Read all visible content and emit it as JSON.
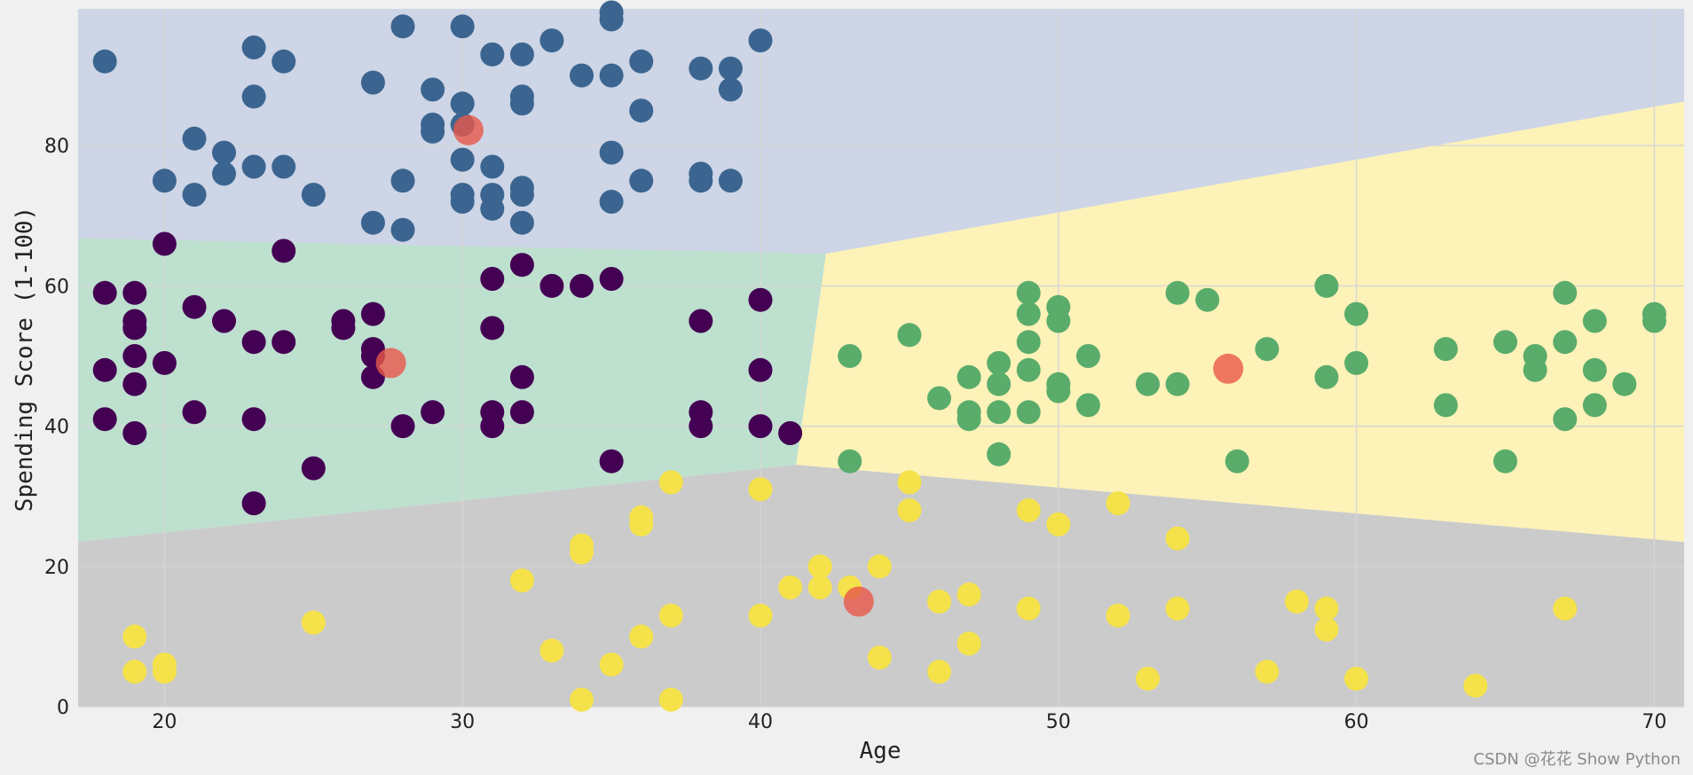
{
  "chart_data": {
    "type": "scatter",
    "title": "",
    "xlabel": "Age",
    "ylabel": "Spending Score (1-100)",
    "xlim": [
      17.1,
      71
    ],
    "ylim": [
      0,
      99.5
    ],
    "xticks": [
      20,
      30,
      40,
      50,
      60,
      70
    ],
    "yticks": [
      0,
      20,
      40,
      60,
      80
    ],
    "grid": true,
    "regions": [
      {
        "cluster": "gray",
        "color": "#cbcbcb",
        "polygon": [
          [
            17.1,
            0
          ],
          [
            71,
            0
          ],
          [
            71,
            23.5
          ],
          [
            41.2,
            34.5
          ],
          [
            17.1,
            23.5
          ]
        ]
      },
      {
        "cluster": "green",
        "color": "#bee0cf",
        "polygon": [
          [
            17.1,
            23.5
          ],
          [
            41.2,
            34.5
          ],
          [
            42.2,
            64.6
          ],
          [
            17.1,
            66.8
          ]
        ]
      },
      {
        "cluster": "yellow",
        "color": "#fdf2b8",
        "polygon": [
          [
            41.2,
            34.5
          ],
          [
            71,
            23.5
          ],
          [
            71,
            86.3
          ],
          [
            42.2,
            64.6
          ]
        ]
      },
      {
        "cluster": "blue",
        "color": "#cdd5e6",
        "polygon": [
          [
            17.1,
            66.8
          ],
          [
            42.2,
            64.6
          ],
          [
            71,
            86.3
          ],
          [
            71,
            99.5
          ],
          [
            17.1,
            99.5
          ]
        ]
      }
    ],
    "series": [
      {
        "cluster": "dark-purple",
        "color": "#440154",
        "points": [
          [
            18,
            59
          ],
          [
            18,
            48
          ],
          [
            18,
            41
          ],
          [
            19,
            59
          ],
          [
            19,
            55
          ],
          [
            19,
            54
          ],
          [
            19,
            50
          ],
          [
            19,
            46
          ],
          [
            19,
            39
          ],
          [
            20,
            66
          ],
          [
            20,
            49
          ],
          [
            21,
            57
          ],
          [
            21,
            42
          ],
          [
            22,
            55
          ],
          [
            23,
            52
          ],
          [
            23,
            41
          ],
          [
            23,
            29
          ],
          [
            24,
            65
          ],
          [
            24,
            52
          ],
          [
            25,
            34
          ],
          [
            26,
            55
          ],
          [
            26,
            54
          ],
          [
            27,
            56
          ],
          [
            27,
            51
          ],
          [
            27,
            50
          ],
          [
            27,
            47
          ],
          [
            28,
            40
          ],
          [
            29,
            42
          ],
          [
            31,
            61
          ],
          [
            31,
            54
          ],
          [
            31,
            42
          ],
          [
            31,
            40
          ],
          [
            32,
            63
          ],
          [
            32,
            47
          ],
          [
            32,
            42
          ],
          [
            33,
            60
          ],
          [
            34,
            60
          ],
          [
            35,
            61
          ],
          [
            35,
            35
          ],
          [
            38,
            55
          ],
          [
            38,
            42
          ],
          [
            38,
            40
          ],
          [
            40,
            58
          ],
          [
            40,
            48
          ],
          [
            40,
            40
          ],
          [
            41,
            39
          ]
        ]
      },
      {
        "cluster": "blue",
        "color": "#3b6590",
        "points": [
          [
            18,
            92
          ],
          [
            21,
            81
          ],
          [
            21,
            73
          ],
          [
            20,
            75
          ],
          [
            22,
            79
          ],
          [
            22,
            76
          ],
          [
            23,
            94
          ],
          [
            23,
            87
          ],
          [
            23,
            77
          ],
          [
            24,
            92
          ],
          [
            24,
            77
          ],
          [
            25,
            73
          ],
          [
            27,
            89
          ],
          [
            27,
            69
          ],
          [
            28,
            97
          ],
          [
            28,
            75
          ],
          [
            28,
            68
          ],
          [
            29,
            88
          ],
          [
            29,
            83
          ],
          [
            29,
            82
          ],
          [
            30,
            97
          ],
          [
            30,
            86
          ],
          [
            30,
            83
          ],
          [
            30,
            78
          ],
          [
            30,
            73
          ],
          [
            30,
            72
          ],
          [
            31,
            93
          ],
          [
            31,
            77
          ],
          [
            31,
            73
          ],
          [
            31,
            71
          ],
          [
            32,
            93
          ],
          [
            32,
            87
          ],
          [
            32,
            86
          ],
          [
            32,
            74
          ],
          [
            32,
            73
          ],
          [
            32,
            69
          ],
          [
            33,
            95
          ],
          [
            34,
            90
          ],
          [
            35,
            99
          ],
          [
            35,
            98
          ],
          [
            35,
            90
          ],
          [
            35,
            79
          ],
          [
            35,
            72
          ],
          [
            36,
            92
          ],
          [
            36,
            85
          ],
          [
            36,
            75
          ],
          [
            38,
            91
          ],
          [
            38,
            76
          ],
          [
            38,
            75
          ],
          [
            39,
            91
          ],
          [
            39,
            88
          ],
          [
            39,
            75
          ],
          [
            40,
            95
          ]
        ]
      },
      {
        "cluster": "green",
        "color": "#5aac6b",
        "points": [
          [
            43,
            50
          ],
          [
            43,
            35
          ],
          [
            45,
            53
          ],
          [
            46,
            44
          ],
          [
            47,
            47
          ],
          [
            47,
            42
          ],
          [
            47,
            41
          ],
          [
            48,
            49
          ],
          [
            48,
            46
          ],
          [
            48,
            42
          ],
          [
            48,
            36
          ],
          [
            49,
            59
          ],
          [
            49,
            56
          ],
          [
            49,
            52
          ],
          [
            49,
            48
          ],
          [
            49,
            42
          ],
          [
            50,
            57
          ],
          [
            50,
            55
          ],
          [
            50,
            46
          ],
          [
            50,
            45
          ],
          [
            51,
            50
          ],
          [
            51,
            43
          ],
          [
            53,
            46
          ],
          [
            54,
            59
          ],
          [
            54,
            46
          ],
          [
            55,
            58
          ],
          [
            56,
            35
          ],
          [
            57,
            51
          ],
          [
            59,
            60
          ],
          [
            59,
            47
          ],
          [
            60,
            56
          ],
          [
            60,
            49
          ],
          [
            63,
            51
          ],
          [
            63,
            43
          ],
          [
            65,
            52
          ],
          [
            65,
            35
          ],
          [
            66,
            50
          ],
          [
            66,
            48
          ],
          [
            67,
            59
          ],
          [
            67,
            52
          ],
          [
            67,
            41
          ],
          [
            68,
            55
          ],
          [
            68,
            48
          ],
          [
            68,
            43
          ],
          [
            69,
            46
          ],
          [
            70,
            56
          ],
          [
            70,
            55
          ]
        ]
      },
      {
        "cluster": "yellow",
        "color": "#f5e24a",
        "points": [
          [
            19,
            10
          ],
          [
            19,
            5
          ],
          [
            20,
            6
          ],
          [
            20,
            5
          ],
          [
            25,
            12
          ],
          [
            32,
            18
          ],
          [
            33,
            8
          ],
          [
            34,
            23
          ],
          [
            34,
            22
          ],
          [
            34,
            1
          ],
          [
            35,
            6
          ],
          [
            36,
            27
          ],
          [
            36,
            26
          ],
          [
            36,
            10
          ],
          [
            37,
            32
          ],
          [
            37,
            13
          ],
          [
            37,
            1
          ],
          [
            40,
            31
          ],
          [
            40,
            13
          ],
          [
            41,
            17
          ],
          [
            42,
            20
          ],
          [
            42,
            17
          ],
          [
            43,
            17
          ],
          [
            44,
            20
          ],
          [
            44,
            7
          ],
          [
            45,
            32
          ],
          [
            45,
            28
          ],
          [
            46,
            15
          ],
          [
            46,
            5
          ],
          [
            47,
            16
          ],
          [
            47,
            9
          ],
          [
            49,
            28
          ],
          [
            49,
            14
          ],
          [
            50,
            26
          ],
          [
            52,
            29
          ],
          [
            52,
            13
          ],
          [
            53,
            4
          ],
          [
            54,
            24
          ],
          [
            54,
            14
          ],
          [
            57,
            5
          ],
          [
            58,
            15
          ],
          [
            59,
            14
          ],
          [
            59,
            11
          ],
          [
            60,
            4
          ],
          [
            64,
            3
          ],
          [
            67,
            14
          ]
        ]
      },
      {
        "cluster": "centroids",
        "color": "#e8574a",
        "points": [
          [
            30.2,
            82.2
          ],
          [
            27.6,
            49.0
          ],
          [
            55.7,
            48.2
          ],
          [
            43.3,
            15.0
          ]
        ]
      }
    ]
  },
  "watermark": "CSDN @花花 Show Python"
}
